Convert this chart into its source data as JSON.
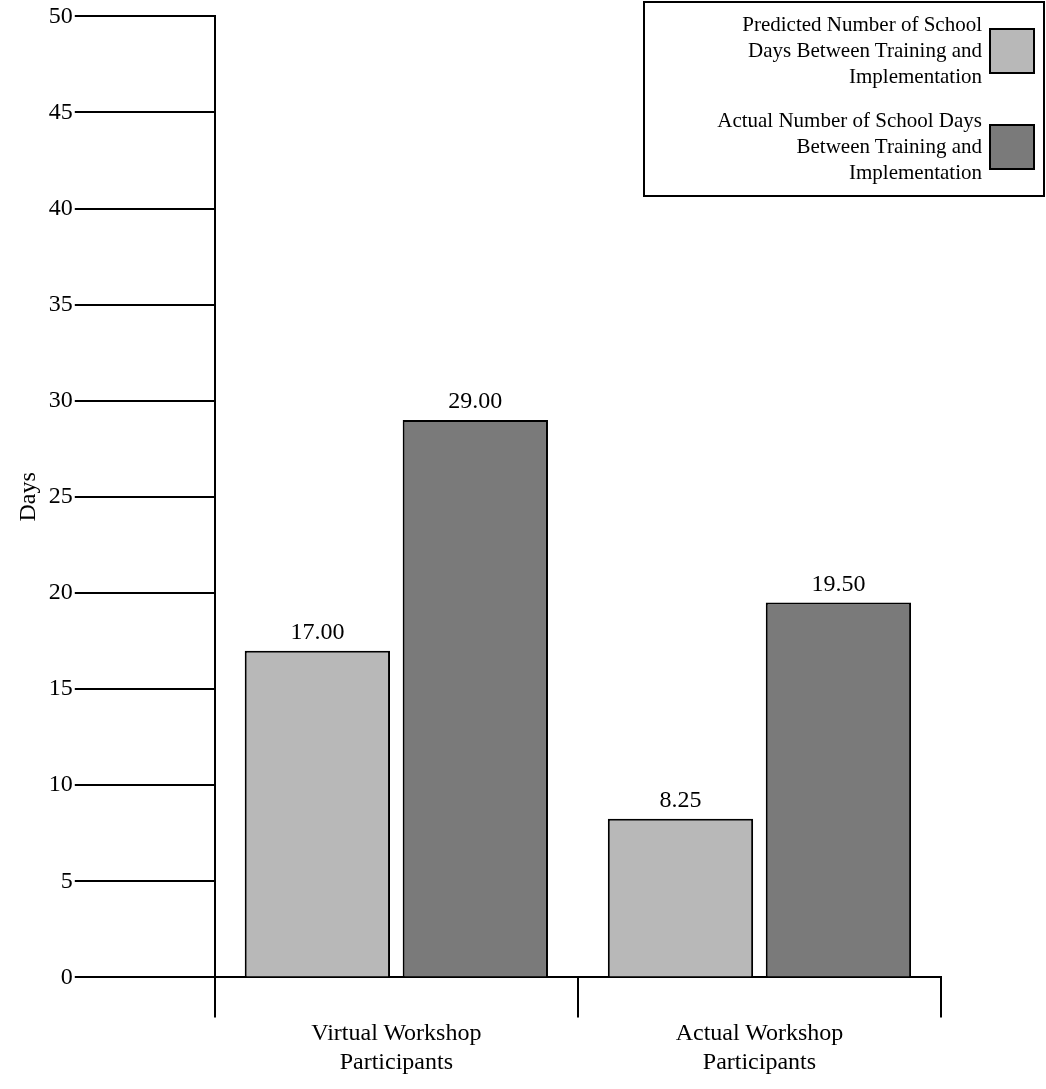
{
  "chart_data": {
    "type": "bar",
    "ylabel": "Days",
    "categories": [
      "Virtual Workshop Participants",
      "Actual Workshop Participants"
    ],
    "series": [
      {
        "name": "Predicted Number of School Days Between Training and Implementation",
        "color": "#b8b8b8",
        "values": [
          17,
          8.25
        ],
        "value_labels": [
          "17.00",
          "8.25"
        ]
      },
      {
        "name": "Actual  Number of School Days Between Training and Implementation",
        "color": "#7a7a7a",
        "values": [
          29,
          19.5
        ],
        "value_labels": [
          "29.00",
          "19.50"
        ]
      }
    ],
    "ylim": [
      0,
      50
    ],
    "yticks": [
      0,
      5,
      10,
      15,
      20,
      25,
      30,
      35,
      40,
      45,
      50
    ],
    "grid": false,
    "legend": "top right"
  }
}
